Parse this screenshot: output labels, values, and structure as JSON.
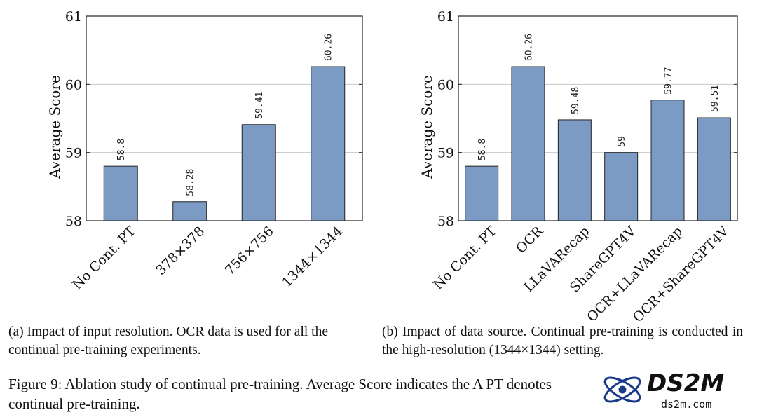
{
  "chart_data": [
    {
      "type": "bar",
      "title": "",
      "xlabel": "",
      "ylabel": "Average Score",
      "ylim": [
        58,
        61
      ],
      "yticks": [
        58,
        59,
        60,
        61
      ],
      "categories": [
        "No Cont. PT",
        "378×378",
        "756×756",
        "1344×1344"
      ],
      "values": [
        58.8,
        58.28,
        59.41,
        60.26
      ],
      "value_labels": [
        "58.8",
        "58.28",
        "59.41",
        "60.26"
      ],
      "bar_color": "#7b9bc4",
      "grid": true
    },
    {
      "type": "bar",
      "title": "",
      "xlabel": "",
      "ylabel": "Average Score",
      "ylim": [
        58,
        61
      ],
      "yticks": [
        58,
        59,
        60,
        61
      ],
      "categories": [
        "No Cont. PT",
        "OCR",
        "LLaVARecap",
        "ShareGPT4V",
        "OCR+LLaVARecap",
        "OCR+ShareGPT4V"
      ],
      "values": [
        58.8,
        60.26,
        59.48,
        59,
        59.77,
        59.51
      ],
      "value_labels": [
        "58.8",
        "60.26",
        "59.48",
        "59",
        "59.77",
        "59.51"
      ],
      "bar_color": "#7b9bc4",
      "grid": true
    }
  ],
  "captions": {
    "a": "(a) Impact of input resolution. OCR data is used for all the continual pre-training experiments.",
    "b": "(b) Impact of data source.  Continual pre-training is conducted in the high-resolution (1344×1344) setting.",
    "figure": "Figure 9: Ablation study of continual pre-training. Average Score indicates the A PT denotes continual pre-training."
  },
  "watermark": {
    "title": "DS2M",
    "url": "ds2m.com"
  }
}
